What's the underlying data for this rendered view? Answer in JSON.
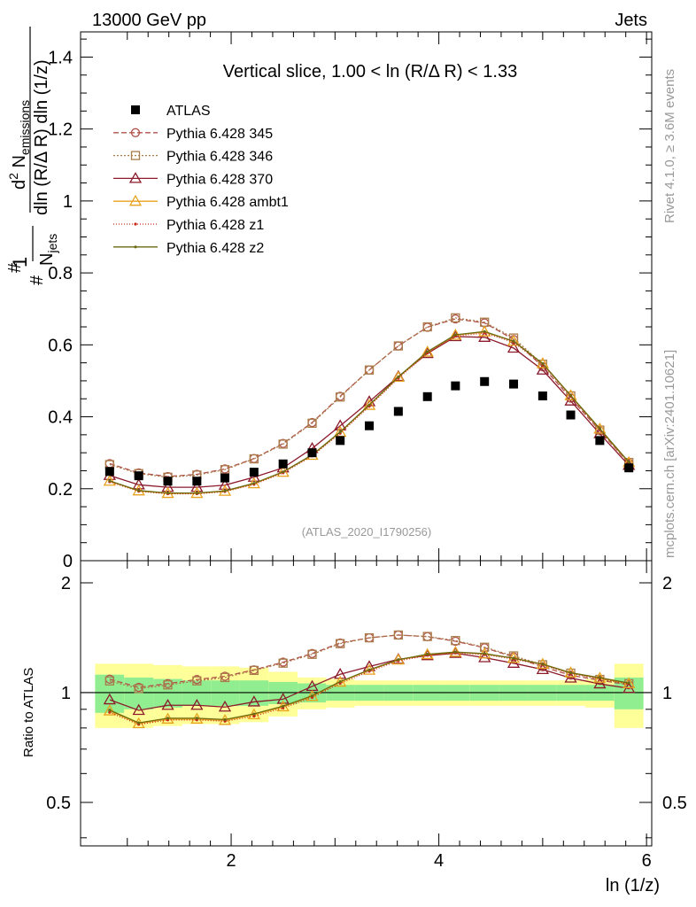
{
  "header": {
    "left": "13000 GeV pp",
    "right": "Jets"
  },
  "side_labels": {
    "rivet": "Rivet 4.1.0, ≥ 3.6M events",
    "mcplots": "mcplots.cern.ch [arXiv:2401.10621]"
  },
  "chart_data": {
    "type": "line",
    "title": "Vertical slice, 1.00 < ln (R/Δ R) < 1.33",
    "watermark": "(ATLAS_2020_I1790256)",
    "xlabel": "ln (1/z)",
    "ylabel": "#frac{1}{N_{jets}} #frac{d^{2} N_{emissions}}{dln (R/#Delta R) dln (1/z)}",
    "ylabel_parts": {
      "one": "1",
      "njets": "N",
      "njets_sub": "jets",
      "d2": "d",
      "d2_sup": "2",
      "nem": " N",
      "nem_sub": "emissions",
      "denominator": "dln (R/Δ R) dln (1/z)",
      "hash": "#"
    },
    "ratio_ylabel": "Ratio to ATLAS",
    "xlim": [
      0.55,
      6.05
    ],
    "ylim": [
      0,
      1.47
    ],
    "ratio_ylim": [
      0.38,
      2.3
    ],
    "xticks": [
      2,
      4,
      6
    ],
    "yticks": [
      0,
      0.2,
      0.4,
      0.6,
      0.8,
      1,
      1.2,
      1.4
    ],
    "ytick_labels": [
      "0",
      "0.2",
      "0.4",
      "0.6",
      "0.8",
      "1",
      "1.2",
      "1.4"
    ],
    "ratio_yticks": [
      0.5,
      1,
      2
    ],
    "ratio_ytick_labels": [
      "0.5",
      "1",
      "2"
    ],
    "x": [
      0.83,
      1.11,
      1.39,
      1.67,
      1.94,
      2.22,
      2.5,
      2.78,
      3.05,
      3.33,
      3.61,
      3.89,
      4.16,
      4.44,
      4.72,
      5.0,
      5.27,
      5.55,
      5.83
    ],
    "atlas": [
      0.248,
      0.236,
      0.221,
      0.221,
      0.23,
      0.246,
      0.269,
      0.3,
      0.334,
      0.375,
      0.415,
      0.456,
      0.486,
      0.498,
      0.491,
      0.458,
      0.405,
      0.334,
      0.258
    ],
    "band_inner": [
      0.12,
      0.1,
      0.09,
      0.08,
      0.08,
      0.08,
      0.07,
      0.06,
      0.05,
      0.05,
      0.05,
      0.05,
      0.05,
      0.05,
      0.05,
      0.05,
      0.05,
      0.05,
      0.1
    ],
    "band_outer": [
      0.2,
      0.2,
      0.19,
      0.18,
      0.18,
      0.17,
      0.14,
      0.1,
      0.09,
      0.08,
      0.08,
      0.08,
      0.08,
      0.08,
      0.08,
      0.08,
      0.08,
      0.09,
      0.2
    ],
    "series": [
      {
        "name": "ATLAS",
        "legend": "ATLAS",
        "color": "#000000",
        "marker": "square",
        "dash": "none"
      },
      {
        "name": "Pythia 6.428 345",
        "legend": "Pythia 6.428 345",
        "color": "#b2524c",
        "marker": "circle",
        "dash": "6,3",
        "values": [
          0.27,
          0.244,
          0.234,
          0.24,
          0.255,
          0.284,
          0.326,
          0.384,
          0.457,
          0.53,
          0.597,
          0.649,
          0.672,
          0.661,
          0.615,
          0.539,
          0.452,
          0.361,
          0.271
        ]
      },
      {
        "name": "Pythia 6.428 346",
        "legend": "Pythia 6.428 346",
        "color": "#a97c49",
        "marker": "square-open",
        "dash": "2,2",
        "values": [
          0.267,
          0.242,
          0.232,
          0.238,
          0.253,
          0.283,
          0.324,
          0.382,
          0.455,
          0.53,
          0.597,
          0.65,
          0.675,
          0.663,
          0.619,
          0.546,
          0.458,
          0.363,
          0.273
        ]
      },
      {
        "name": "Pythia 6.428 370",
        "legend": "Pythia 6.428 370",
        "color": "#8b1a2b",
        "marker": "triangle",
        "dash": "none",
        "values": [
          0.237,
          0.211,
          0.204,
          0.204,
          0.21,
          0.232,
          0.258,
          0.312,
          0.375,
          0.442,
          0.512,
          0.576,
          0.623,
          0.621,
          0.591,
          0.53,
          0.444,
          0.353,
          0.265
        ]
      },
      {
        "name": "Pythia 6.428 ambt1",
        "legend": "Pythia 6.428 ambt1",
        "color": "#e8a21e",
        "marker": "triangle",
        "dash": "none",
        "values": [
          0.221,
          0.194,
          0.187,
          0.187,
          0.193,
          0.214,
          0.246,
          0.293,
          0.357,
          0.432,
          0.51,
          0.58,
          0.627,
          0.636,
          0.61,
          0.548,
          0.459,
          0.366,
          0.273
        ]
      },
      {
        "name": "Pythia 6.428 z1",
        "legend": "Pythia 6.428 z1",
        "color": "#cc2a1a",
        "marker": "dot",
        "dash": "1,2",
        "values": [
          0.219,
          0.193,
          0.186,
          0.186,
          0.192,
          0.212,
          0.244,
          0.291,
          0.354,
          0.429,
          0.507,
          0.577,
          0.624,
          0.633,
          0.607,
          0.545,
          0.457,
          0.365,
          0.272
        ]
      },
      {
        "name": "Pythia 6.428 z2",
        "legend": "Pythia 6.428 z2",
        "color": "#6b6a10",
        "marker": "dot",
        "dash": "none",
        "values": [
          0.222,
          0.195,
          0.188,
          0.188,
          0.194,
          0.215,
          0.247,
          0.294,
          0.358,
          0.433,
          0.511,
          0.581,
          0.628,
          0.637,
          0.61,
          0.548,
          0.459,
          0.367,
          0.274
        ]
      }
    ]
  },
  "colors": {
    "band_inner": "#90ee90",
    "band_outer": "#ffff99",
    "frame": "#000000"
  }
}
